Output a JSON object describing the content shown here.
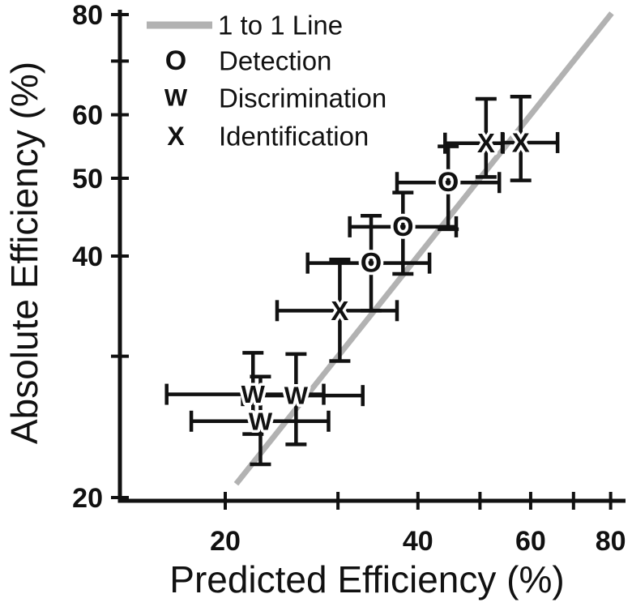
{
  "chart_data": {
    "type": "scatter",
    "title": "",
    "xlabel": "Predicted Efficiency (%)",
    "ylabel": "Absolute Efficiency (%)",
    "x_scale": "log",
    "y_scale": "log",
    "x_range": [
      13.7,
      84
    ],
    "y_range": [
      20,
      81.5
    ],
    "grid": false,
    "legend_position": "top-left",
    "x_ticks": [
      {
        "value": 20,
        "label": "20"
      },
      {
        "value": 30,
        "label": ""
      },
      {
        "value": 40,
        "label": "40"
      },
      {
        "value": 50,
        "label": ""
      },
      {
        "value": 60,
        "label": "60"
      },
      {
        "value": 70,
        "label": ""
      },
      {
        "value": 80,
        "label": "80"
      }
    ],
    "y_ticks": [
      {
        "value": 20,
        "label": "20"
      },
      {
        "value": 30,
        "label": ""
      },
      {
        "value": 40,
        "label": "40"
      },
      {
        "value": 50,
        "label": "50"
      },
      {
        "value": 60,
        "label": "60"
      },
      {
        "value": 70,
        "label": ""
      },
      {
        "value": 80,
        "label": "80"
      }
    ],
    "ref_line": {
      "label": "1 to 1 Line",
      "from": 20.8,
      "to": 80.3,
      "color": "#b2b2b2"
    },
    "series": [
      {
        "name": "Detection",
        "marker": "O",
        "points": [
          {
            "x": 44.6,
            "y": 49.4,
            "x_err": [
              37.1,
              53.6
            ],
            "y_err": [
              43.2,
              54.8
            ]
          },
          {
            "x": 37.9,
            "y": 43.5,
            "x_err": [
              31.3,
              45.9
            ],
            "y_err": [
              38.0,
              48.0
            ]
          },
          {
            "x": 33.8,
            "y": 39.2,
            "x_err": [
              26.9,
              41.7
            ],
            "y_err": [
              34.2,
              44.9
            ]
          }
        ]
      },
      {
        "name": "Discrimination",
        "marker": "W",
        "points": [
          {
            "x": 22.1,
            "y": 26.9,
            "x_err": [
              16.2,
              28.5
            ],
            "y_err": [
              24.0,
              30.3
            ]
          },
          {
            "x": 25.8,
            "y": 26.8,
            "x_err": [
              21.3,
              32.8
            ],
            "y_err": [
              23.3,
              30.2
            ]
          },
          {
            "x": 22.7,
            "y": 24.9,
            "x_err": [
              17.7,
              29.0
            ],
            "y_err": [
              22.0,
              28.3
            ]
          }
        ]
      },
      {
        "name": "Identification",
        "marker": "X",
        "points": [
          {
            "x": 51.1,
            "y": 55.3,
            "x_err": [
              44.1,
              54.3
            ],
            "y_err": [
              50.2,
              62.8
            ]
          },
          {
            "x": 57.9,
            "y": 55.4,
            "x_err": [
              54.2,
              66.1
            ],
            "y_err": [
              49.7,
              63.2
            ]
          },
          {
            "x": 30.2,
            "y": 34.2,
            "x_err": [
              24.1,
              37.1
            ],
            "y_err": [
              29.6,
              39.6
            ]
          }
        ]
      }
    ],
    "colors": {
      "marker": "#111111",
      "axis": "#111111",
      "ref_line": "#b2b2b2",
      "background": "#ffffff"
    }
  }
}
